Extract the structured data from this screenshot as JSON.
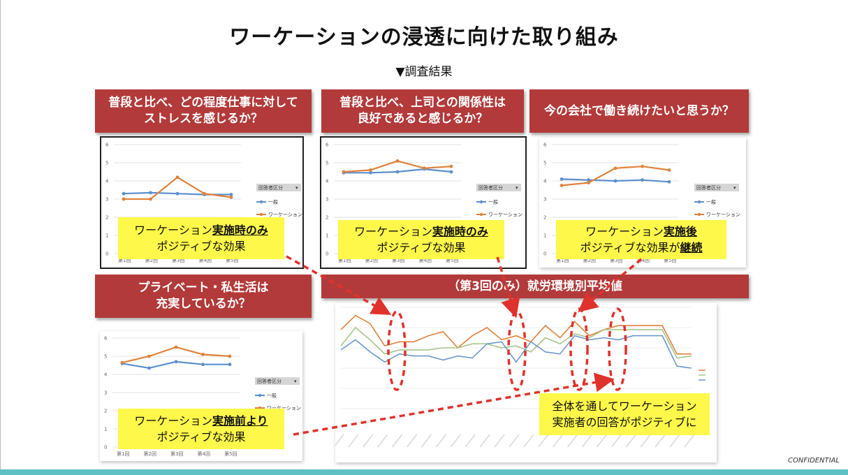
{
  "title": "ワーケーションの浸透に向けた取り組み",
  "subtitle": "▼調査結果",
  "confidential": "CONFIDENTIAL",
  "colors": {
    "banner": "#b33a3a",
    "note": "#fdf84a",
    "general": "#5b8fcb",
    "workation": "#e0823a",
    "dash": "#e0322c",
    "footer": "#5fc1c4"
  },
  "panels": [
    {
      "banner_lines": [
        "普段と比べ、どの程度仕事に対して",
        "ストレスを感じるか？"
      ],
      "note": {
        "pre": "ワーケーション",
        "hl": "実施時のみ",
        "post": "",
        "line2_pre": "ポジティブな効果",
        "line2_hl": ""
      }
    },
    {
      "banner_lines": [
        "普段と比べ、上司との関係性は",
        "良好であると感じるか？"
      ],
      "note": {
        "pre": "ワーケーション",
        "hl": "実施時のみ",
        "post": "",
        "line2_pre": "ポジティブな効果",
        "line2_hl": ""
      }
    },
    {
      "banner_lines": [
        "今の会社で働き続けたいと思うか？"
      ],
      "note": {
        "pre": "ワーケーション",
        "hl": "実施後",
        "post": "",
        "line2_pre": "ポジティブな効果が",
        "line2_hl": "継続"
      }
    },
    {
      "banner_lines": [
        "プライベート・私生活は",
        "充実しているか？"
      ],
      "note": {
        "pre": "ワーケーション",
        "hl": "実施前より",
        "post": "",
        "line2_pre": "ポジティブな効果",
        "line2_hl": ""
      }
    }
  ],
  "big_banner": "（第3回のみ）就労環境別平均値",
  "big_note_lines": [
    "全体を通してワーケーション",
    "実施者の回答がポジティブに"
  ],
  "chart_data": [
    {
      "type": "line",
      "title": "普段と比べ、どの程度仕事に対してストレスを感じるか？",
      "categories": [
        "第1回",
        "第2回",
        "第3回",
        "第4回",
        "第5回"
      ],
      "ylim": [
        0,
        6
      ],
      "yticks": [
        "0",
        "1",
        "2",
        "3",
        "4",
        "5",
        "6"
      ],
      "legend_title": "回答者区分",
      "series": [
        {
          "name": "一般",
          "values": [
            3.3,
            3.35,
            3.3,
            3.25,
            3.25
          ]
        },
        {
          "name": "ワーケーション",
          "values": [
            3.0,
            3.0,
            4.2,
            3.3,
            3.1
          ]
        }
      ]
    },
    {
      "type": "line",
      "title": "普段と比べ、上司との関係性は良好であると感じるか？",
      "categories": [
        "第1回",
        "第2回",
        "第3回",
        "第4回",
        "第5回"
      ],
      "ylim": [
        0,
        6
      ],
      "yticks": [
        "0",
        "1",
        "2",
        "3",
        "4",
        "5",
        "6"
      ],
      "legend_title": "回答者区分",
      "series": [
        {
          "name": "一般",
          "values": [
            4.45,
            4.45,
            4.5,
            4.65,
            4.5
          ]
        },
        {
          "name": "ワーケーション",
          "values": [
            4.5,
            4.6,
            5.1,
            4.7,
            4.8
          ]
        }
      ]
    },
    {
      "type": "line",
      "title": "今の会社で働き続けたいと思うか？",
      "categories": [
        "第1回",
        "第2回",
        "第3回",
        "第4回",
        "第5回"
      ],
      "ylim": [
        0,
        6
      ],
      "yticks": [
        "0",
        "1",
        "2",
        "3",
        "4",
        "5",
        "6"
      ],
      "legend_title": "回答者区分",
      "series": [
        {
          "name": "一般",
          "values": [
            4.1,
            4.05,
            4.0,
            4.05,
            3.95
          ]
        },
        {
          "name": "ワーケーション",
          "values": [
            3.75,
            3.9,
            4.7,
            4.8,
            4.6
          ]
        }
      ]
    },
    {
      "type": "line",
      "title": "プライベート・私生活は充実しているか？",
      "categories": [
        "第1回",
        "第2回",
        "第3回",
        "第4回",
        "第5回"
      ],
      "ylim": [
        0,
        6
      ],
      "yticks": [
        "0",
        "1",
        "2",
        "3",
        "4",
        "5",
        "6"
      ],
      "legend_title": "回答者区分",
      "series": [
        {
          "name": "一般",
          "values": [
            4.6,
            4.35,
            4.7,
            4.55,
            4.55
          ]
        },
        {
          "name": "ワーケーション",
          "values": [
            4.65,
            5.0,
            5.5,
            5.1,
            5.0
          ]
        }
      ]
    },
    {
      "type": "line",
      "title": "（第3回のみ）就労環境別平均値",
      "ylim": [
        0,
        6
      ],
      "n_points": 25,
      "legend_entries": [
        "",
        "",
        ""
      ],
      "series": [
        {
          "name": "orange",
          "color": "#e0823a",
          "values": [
            4.9,
            5.6,
            5.2,
            4.1,
            4.3,
            4.3,
            4.6,
            4.8,
            4.0,
            4.6,
            5.0,
            4.4,
            4.6,
            4.3,
            5.1,
            4.5,
            5.3,
            4.6,
            4.9,
            5.1,
            5.1,
            5.1,
            5.1,
            3.7,
            3.7
          ]
        },
        {
          "name": "green",
          "color": "#a6c58a",
          "values": [
            4.1,
            5.0,
            4.4,
            3.7,
            3.9,
            3.9,
            3.9,
            4.0,
            4.0,
            4.2,
            4.2,
            4.0,
            4.1,
            3.8,
            4.5,
            4.2,
            4.7,
            4.5,
            4.9,
            4.9,
            4.9,
            4.9,
            4.9,
            3.5,
            3.6
          ]
        },
        {
          "name": "blue",
          "color": "#6c98cc",
          "values": [
            3.9,
            4.4,
            3.8,
            3.3,
            3.7,
            3.6,
            3.6,
            3.4,
            3.6,
            3.5,
            4.2,
            4.3,
            3.3,
            4.3,
            3.8,
            3.7,
            4.6,
            4.4,
            4.5,
            4.4,
            4.6,
            4.6,
            4.6,
            3.1,
            3.0
          ]
        }
      ]
    }
  ]
}
